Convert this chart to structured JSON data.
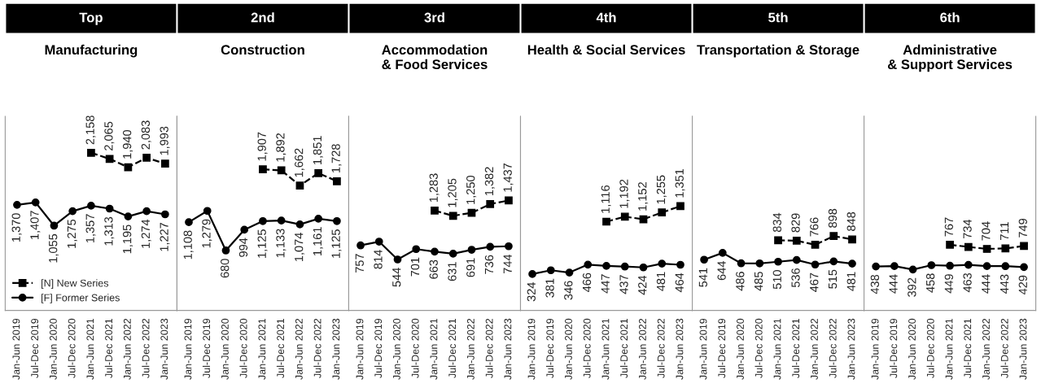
{
  "chart_data": [
    {
      "type": "line",
      "title": "Top",
      "subtitle": "Manufacturing",
      "categories": [
        "Jan-Jun 2019",
        "Jul-Dec 2019",
        "Jan-Jun 2020",
        "Jul-Dec 2020",
        "Jan-Jun 2021",
        "Jul-Dec 2021",
        "Jan-Jun 2022",
        "Jul-Dec 2022",
        "Jan-Jun 2023"
      ],
      "tick_labels": "x",
      "legend": "bottom left",
      "series": [
        {
          "name": "[N] New Series",
          "color": "#000000",
          "marker": "square",
          "line_style": "dashed",
          "values": [
            null,
            null,
            null,
            null,
            2158,
            2065,
            1940,
            2083,
            1993
          ],
          "value_labels": [
            null,
            null,
            null,
            null,
            "2,158",
            "2,065",
            "1,940",
            "2,083",
            "1,993"
          ]
        },
        {
          "name": "[F] Former Series",
          "color": "#000000",
          "marker": "circle",
          "line_style": "solid",
          "values": [
            1370,
            1407,
            1055,
            1275,
            1357,
            1313,
            1195,
            1274,
            1227
          ],
          "value_labels": [
            "1,370",
            "1,407",
            "1,055",
            "1,275",
            "1,357",
            "1,313",
            "1,195",
            "1,274",
            "1,227"
          ]
        }
      ]
    },
    {
      "type": "line",
      "title": "2nd",
      "subtitle": "Construction",
      "categories": [
        "Jan-Jun 2019",
        "Jul-Dec 2019",
        "Jan-Jun 2020",
        "Jul-Dec 2020",
        "Jan-Jun 2021",
        "Jul-Dec 2021",
        "Jan-Jun 2022",
        "Jul-Dec 2022",
        "Jan-Jun 2023"
      ],
      "tick_labels": "x",
      "series": [
        {
          "color": "#000000",
          "marker": "square",
          "line_style": "dashed",
          "values": [
            null,
            null,
            null,
            null,
            1907,
            1892,
            1662,
            1851,
            1728
          ],
          "value_labels": [
            null,
            null,
            null,
            null,
            "1,907",
            "1,892",
            "1,662",
            "1,851",
            "1,728"
          ]
        },
        {
          "color": "#000000",
          "marker": "circle",
          "line_style": "solid",
          "values": [
            1108,
            1279,
            680,
            994,
            1125,
            1133,
            1074,
            1161,
            1125
          ],
          "value_labels": [
            "1,108",
            "1,279",
            "680",
            "994",
            "1,125",
            "1,133",
            "1,074",
            "1,161",
            "1,125"
          ]
        }
      ]
    },
    {
      "type": "line",
      "title": "3rd",
      "subtitle": "Accommodation\n& Food Services",
      "categories": [
        "Jan-Jun 2019",
        "Jul-Dec 2019",
        "Jan-Jun 2020",
        "Jul-Dec 2020",
        "Jan-Jun 2021",
        "Jul-Dec 2021",
        "Jan-Jun 2022",
        "Jul-Dec 2022",
        "Jan-Jun 2023"
      ],
      "tick_labels": "x",
      "series": [
        {
          "color": "#000000",
          "marker": "square",
          "line_style": "dashed",
          "values": [
            null,
            null,
            null,
            null,
            1283,
            1205,
            1250,
            1382,
            1437
          ],
          "value_labels": [
            null,
            null,
            null,
            null,
            "1,283",
            "1,205",
            "1,250",
            "1,382",
            "1,437"
          ]
        },
        {
          "color": "#000000",
          "marker": "circle",
          "line_style": "solid",
          "values": [
            757,
            814,
            544,
            701,
            663,
            631,
            691,
            736,
            744
          ],
          "value_labels": [
            "757",
            "814",
            "544",
            "701",
            "663",
            "631",
            "691",
            "736",
            "744"
          ]
        }
      ]
    },
    {
      "type": "line",
      "title": "4th",
      "subtitle": "Health & Social Services",
      "categories": [
        "Jan-Jun 2019",
        "Jul-Dec 2019",
        "Jan-Jun 2020",
        "Jul-Dec 2020",
        "Jan-Jun 2021",
        "Jul-Dec 2021",
        "Jan-Jun 2022",
        "Jul-Dec 2022",
        "Jan-Jun 2023"
      ],
      "tick_labels": "x",
      "series": [
        {
          "color": "#000000",
          "marker": "square",
          "line_style": "dashed",
          "values": [
            null,
            null,
            null,
            null,
            1116,
            1192,
            1152,
            1255,
            1351
          ],
          "value_labels": [
            null,
            null,
            null,
            null,
            "1,116",
            "1,192",
            "1,152",
            "1,255",
            "1,351"
          ]
        },
        {
          "color": "#000000",
          "marker": "circle",
          "line_style": "solid",
          "values": [
            324,
            381,
            346,
            466,
            447,
            437,
            424,
            481,
            464
          ],
          "value_labels": [
            "324",
            "381",
            "346",
            "466",
            "447",
            "437",
            "424",
            "481",
            "464"
          ]
        }
      ]
    },
    {
      "type": "line",
      "title": "5th",
      "subtitle": "Transportation & Storage",
      "categories": [
        "Jan-Jun 2019",
        "Jul-Dec 2019",
        "Jan-Jun 2020",
        "Jul-Dec 2020",
        "Jan-Jun 2021",
        "Jul-Dec 2021",
        "Jan-Jun 2022",
        "Jul-Dec 2022",
        "Jan-Jun 2023"
      ],
      "tick_labels": "x",
      "series": [
        {
          "color": "#000000",
          "marker": "square",
          "line_style": "dashed",
          "values": [
            null,
            null,
            null,
            null,
            834,
            829,
            766,
            898,
            848
          ],
          "value_labels": [
            null,
            null,
            null,
            null,
            "834",
            "829",
            "766",
            "898",
            "848"
          ]
        },
        {
          "color": "#000000",
          "marker": "circle",
          "line_style": "solid",
          "values": [
            541,
            644,
            486,
            485,
            510,
            536,
            467,
            515,
            481
          ],
          "value_labels": [
            "541",
            "644",
            "486",
            "485",
            "510",
            "536",
            "467",
            "515",
            "481"
          ]
        }
      ]
    },
    {
      "type": "line",
      "title": "6th",
      "subtitle": "Administrative\n& Support Services",
      "categories": [
        "Jan-Jun 2019",
        "Jul-Dec 2019",
        "Jan-Jun 2020",
        "Jul-Dec 2020",
        "Jan-Jun 2021",
        "Jul-Dec 2021",
        "Jan-Jun 2022",
        "Jul-Dec 2022",
        "Jan-Jun 2023"
      ],
      "tick_labels": "x",
      "series": [
        {
          "color": "#000000",
          "marker": "square",
          "line_style": "dashed",
          "values": [
            null,
            null,
            null,
            null,
            767,
            734,
            704,
            711,
            749
          ],
          "value_labels": [
            null,
            null,
            null,
            null,
            "767",
            "734",
            "704",
            "711",
            "749"
          ]
        },
        {
          "color": "#000000",
          "marker": "circle",
          "line_style": "solid",
          "values": [
            438,
            444,
            392,
            458,
            449,
            463,
            444,
            443,
            429
          ],
          "value_labels": [
            "438",
            "444",
            "392",
            "458",
            "449",
            "463",
            "444",
            "443",
            "429"
          ]
        }
      ]
    }
  ]
}
